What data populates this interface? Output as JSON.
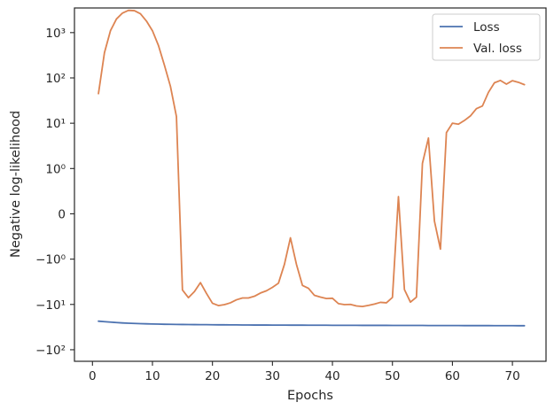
{
  "chart_data": {
    "type": "line",
    "title": "",
    "xlabel": "Epochs",
    "ylabel": "Negative log-likelihood",
    "xlim": [
      -3,
      75.6
    ],
    "xticks": [
      0,
      10,
      20,
      30,
      40,
      50,
      60,
      70
    ],
    "yscale": "symlog",
    "yticks": [
      {
        "value": -100,
        "label": "−10²"
      },
      {
        "value": -10,
        "label": "−10¹"
      },
      {
        "value": -1,
        "label": "−10⁰"
      },
      {
        "value": 0,
        "label": "0"
      },
      {
        "value": 1,
        "label": "10⁰"
      },
      {
        "value": 10,
        "label": "10¹"
      },
      {
        "value": 100,
        "label": "10²"
      },
      {
        "value": 1000,
        "label": "10³"
      }
    ],
    "grid": false,
    "legend_position": "upper right",
    "series": [
      {
        "name": "Loss",
        "color": "#4c72b0",
        "x": [
          1,
          2,
          3,
          4,
          5,
          6,
          7,
          8,
          9,
          10,
          11,
          12,
          13,
          14,
          15,
          16,
          17,
          18,
          19,
          20,
          21,
          22,
          23,
          24,
          25,
          26,
          27,
          28,
          29,
          30,
          31,
          32,
          33,
          34,
          35,
          36,
          37,
          38,
          39,
          40,
          41,
          42,
          43,
          44,
          45,
          46,
          47,
          48,
          49,
          50,
          51,
          52,
          53,
          54,
          55,
          56,
          57,
          58,
          59,
          60,
          61,
          62,
          63,
          64,
          65,
          66,
          67,
          68,
          69,
          70,
          71,
          72
        ],
        "y": [
          -23.4,
          -24.0,
          -24.6,
          -25.1,
          -25.6,
          -26.0,
          -26.3,
          -26.6,
          -26.8,
          -27.0,
          -27.2,
          -27.4,
          -27.5,
          -27.6,
          -27.7,
          -27.8,
          -27.9,
          -28.0,
          -28.0,
          -28.1,
          -28.2,
          -28.2,
          -28.3,
          -28.3,
          -28.4,
          -28.4,
          -28.5,
          -28.5,
          -28.5,
          -28.6,
          -28.6,
          -28.6,
          -28.7,
          -28.7,
          -28.7,
          -28.8,
          -28.8,
          -28.8,
          -28.8,
          -28.9,
          -28.9,
          -28.9,
          -28.9,
          -28.9,
          -29.0,
          -29.0,
          -29.0,
          -29.0,
          -29.0,
          -29.1,
          -29.1,
          -29.1,
          -29.1,
          -29.1,
          -29.1,
          -29.2,
          -29.2,
          -29.2,
          -29.2,
          -29.2,
          -29.2,
          -29.3,
          -29.3,
          -29.3,
          -29.3,
          -29.3,
          -29.4,
          -29.4,
          -29.4,
          -29.4,
          -29.5,
          -29.5
        ]
      },
      {
        "name": "Val. loss",
        "color": "#dd8452",
        "x": [
          1,
          2,
          3,
          4,
          5,
          6,
          7,
          8,
          9,
          10,
          11,
          12,
          13,
          14,
          15,
          16,
          17,
          18,
          19,
          20,
          21,
          22,
          23,
          24,
          25,
          26,
          27,
          28,
          29,
          30,
          31,
          32,
          33,
          34,
          35,
          36,
          37,
          38,
          39,
          40,
          41,
          42,
          43,
          44,
          45,
          46,
          47,
          48,
          49,
          50,
          51,
          52,
          53,
          54,
          55,
          56,
          57,
          58,
          59,
          60,
          61,
          62,
          63,
          64,
          65,
          66,
          67,
          68,
          69,
          70,
          71,
          72
        ],
        "y": [
          45,
          360,
          1100,
          2000,
          2700,
          3100,
          3050,
          2600,
          1800,
          1100,
          520,
          190,
          65,
          14,
          -4.8,
          -7.1,
          -5.2,
          -3.3,
          -5.7,
          -9.4,
          -10.6,
          -10.1,
          -9.2,
          -7.9,
          -7.2,
          -7.2,
          -6.6,
          -5.6,
          -5.0,
          -4.2,
          -3.4,
          -1.3,
          -0.53,
          -1.3,
          -3.8,
          -4.4,
          -6.3,
          -6.9,
          -7.4,
          -7.3,
          -9.6,
          -10.1,
          -10.0,
          -10.8,
          -11.1,
          -10.5,
          -9.8,
          -9.0,
          -9.2,
          -7.0,
          0.38,
          -4.7,
          -8.9,
          -6.9,
          1.3,
          4.7,
          -0.16,
          -0.78,
          6.2,
          10,
          9.5,
          11.5,
          14.5,
          21,
          24,
          48,
          78,
          88,
          73,
          87,
          80,
          71
        ]
      }
    ]
  }
}
